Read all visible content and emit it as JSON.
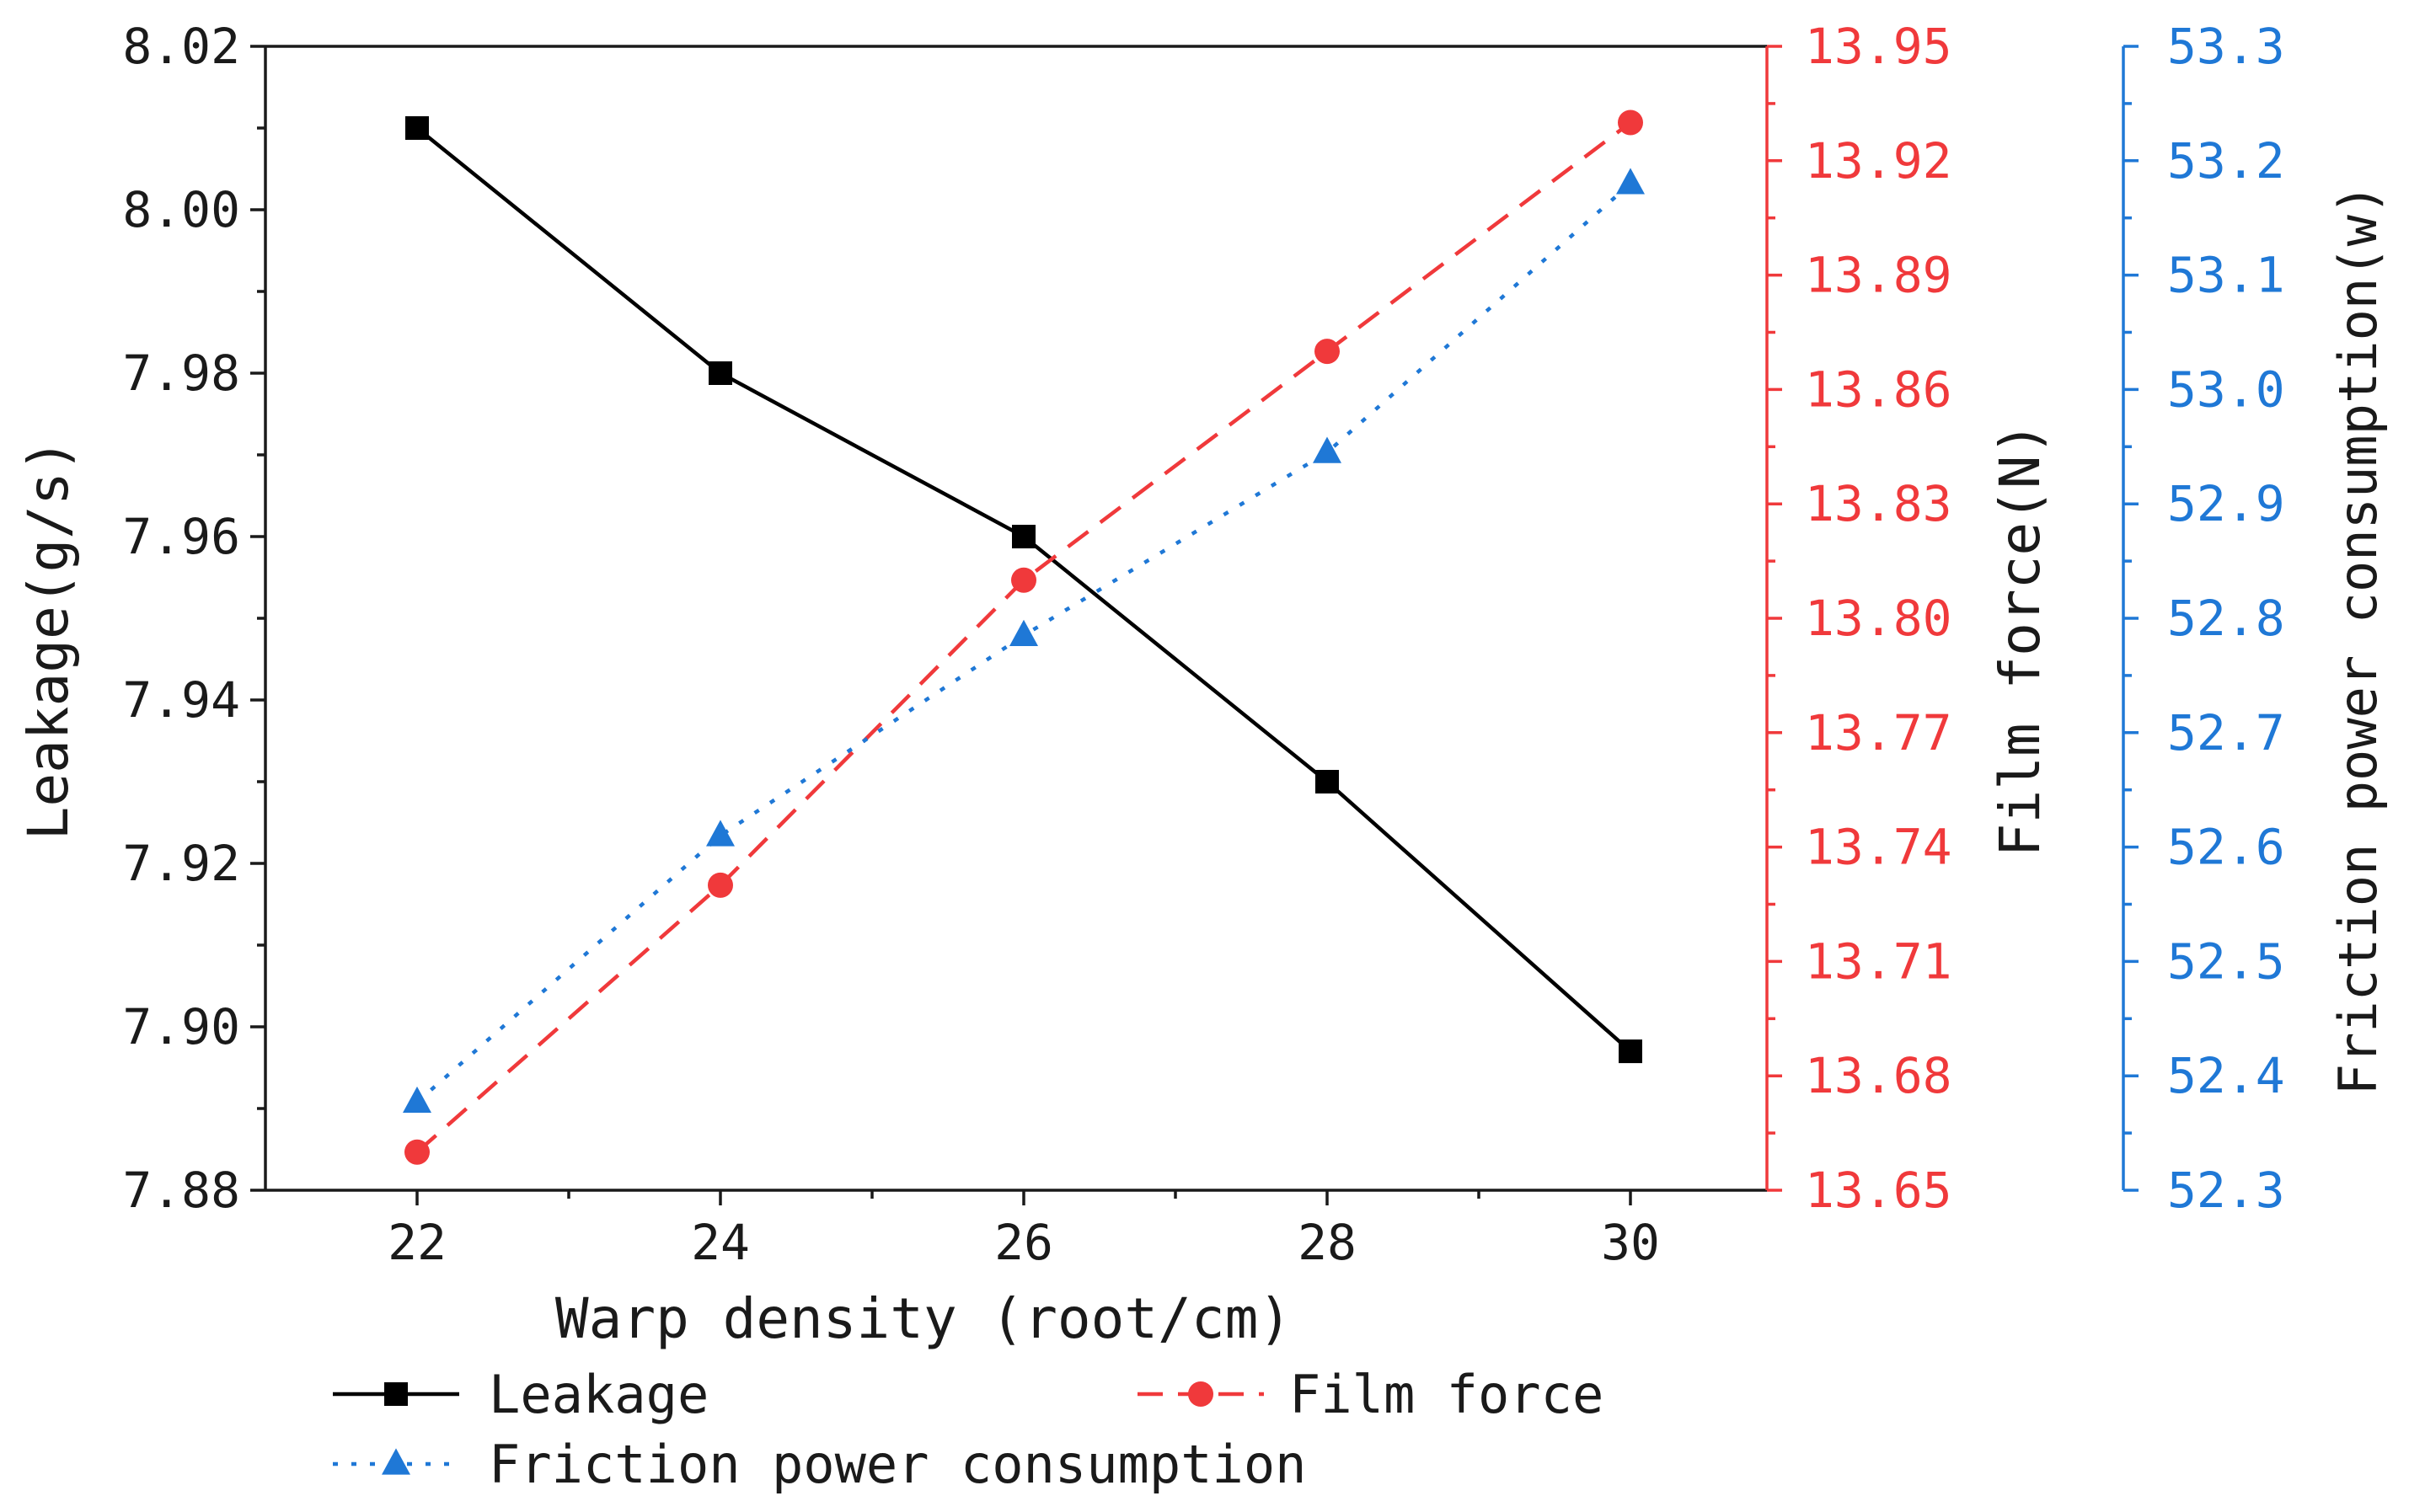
{
  "chart_data": {
    "type": "line",
    "x": [
      22,
      24,
      26,
      28,
      30
    ],
    "xlabel": "Warp density (root/cm)",
    "xlim": [
      21,
      30.9
    ],
    "xticks": [
      22,
      24,
      26,
      28,
      30
    ],
    "xtick_labels": [
      "22",
      "24",
      "26",
      "28",
      "30"
    ],
    "axes": {
      "left": {
        "label": "Leakage(g/s)",
        "color": "#1a1a1a",
        "ylim": [
          7.88,
          8.02
        ],
        "ticks": [
          7.88,
          7.9,
          7.92,
          7.94,
          7.96,
          7.98,
          8.0,
          8.02
        ],
        "tick_labels": [
          "7.88",
          "7.90",
          "7.92",
          "7.94",
          "7.96",
          "7.98",
          "8.00",
          "8.02"
        ]
      },
      "right1": {
        "label": "Film force(N)",
        "color": "#f0393b",
        "ylim": [
          13.65,
          13.95
        ],
        "ticks": [
          13.65,
          13.68,
          13.71,
          13.74,
          13.77,
          13.8,
          13.83,
          13.86,
          13.89,
          13.92,
          13.95
        ],
        "tick_labels": [
          "13.65",
          "13.68",
          "13.71",
          "13.74",
          "13.77",
          "13.80",
          "13.83",
          "13.86",
          "13.89",
          "13.92",
          "13.95"
        ]
      },
      "right2": {
        "label": "Friction power consumption(w)",
        "color": "#1f78d6",
        "ylim": [
          52.3,
          53.3
        ],
        "ticks": [
          52.3,
          52.4,
          52.5,
          52.6,
          52.7,
          52.8,
          52.9,
          53.0,
          53.1,
          53.2,
          53.3
        ],
        "tick_labels": [
          "52.3",
          "52.4",
          "52.5",
          "52.6",
          "52.7",
          "52.8",
          "52.9",
          "53.0",
          "53.1",
          "53.2",
          "53.3"
        ]
      }
    },
    "series": [
      {
        "name": "Leakage",
        "axis": "left",
        "values": [
          8.01,
          7.98,
          7.96,
          7.93,
          7.897
        ],
        "color": "#000000",
        "line": "solid",
        "marker": "square"
      },
      {
        "name": "Film force",
        "axis": "right1",
        "values": [
          13.66,
          13.73,
          13.81,
          13.87,
          13.93
        ],
        "color": "#f0393b",
        "line": "dashed",
        "marker": "circle"
      },
      {
        "name": "Friction power consumption",
        "axis": "right2",
        "values": [
          52.377,
          52.61,
          52.785,
          52.945,
          53.18
        ],
        "color": "#1f78d6",
        "line": "dotted",
        "marker": "triangle"
      }
    ],
    "legend": {
      "position": "bottom",
      "entries": [
        "Leakage",
        "Film force",
        "Friction power consumption"
      ]
    }
  }
}
